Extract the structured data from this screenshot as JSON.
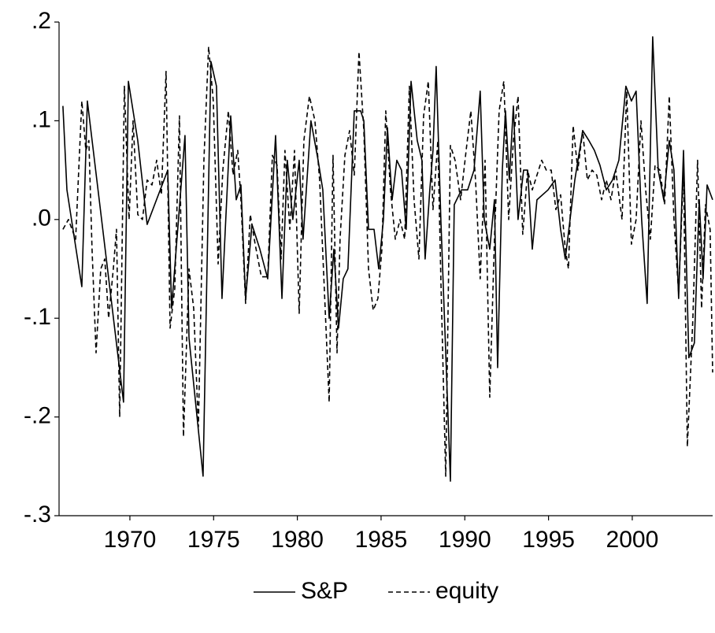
{
  "chart_data": {
    "type": "line",
    "xlim": [
      1965.77,
      2004.8
    ],
    "xticks": [
      1970,
      1975,
      1980,
      1985,
      1990,
      1995,
      2000
    ],
    "ylim": [
      -0.3,
      0.2
    ],
    "yticks": [
      {
        "value": 0.2,
        "label": ".2"
      },
      {
        "value": 0.1,
        "label": ".1"
      },
      {
        "value": 0,
        "label": ".0"
      },
      {
        "value": -0.1,
        "label": "-.1"
      },
      {
        "value": -0.2,
        "label": "-.2"
      },
      {
        "value": -0.3,
        "label": "-.3"
      }
    ],
    "grid": false,
    "legend": "bottom",
    "series": [
      {
        "name": "S&P",
        "color": "#000000",
        "line_style": "solid",
        "x": [
          1966.0,
          1966.24,
          1967.13,
          1967.46,
          1969.62,
          1969.91,
          1970.47,
          1971.03,
          1972.26,
          1972.49,
          1973.29,
          1973.53,
          1974.37,
          1974.84,
          1975.17,
          1975.5,
          1976.02,
          1976.35,
          1976.63,
          1976.91,
          1977.29,
          1977.76,
          1978.23,
          1978.7,
          1979.08,
          1979.4,
          1979.73,
          1980.11,
          1980.34,
          1980.81,
          1981.24,
          1981.52,
          1981.9,
          1982.18,
          1982.46,
          1982.74,
          1983.02,
          1983.4,
          1983.78,
          1983.97,
          1984.25,
          1984.58,
          1984.86,
          1985.14,
          1985.38,
          1985.66,
          1985.94,
          1986.22,
          1986.5,
          1986.79,
          1987.16,
          1987.44,
          1987.63,
          1987.91,
          1988.1,
          1988.29,
          1988.57,
          1989.14,
          1989.37,
          1989.8,
          1990.17,
          1990.55,
          1990.92,
          1991.16,
          1991.49,
          1991.77,
          1991.96,
          1992.24,
          1992.43,
          1992.66,
          1992.9,
          1993.18,
          1993.51,
          1993.75,
          1994.03,
          1994.31,
          1994.97,
          1995.39,
          1995.72,
          1996.0,
          1996.57,
          1997.04,
          1997.41,
          1997.74,
          1998.07,
          1998.45,
          1998.82,
          1999.2,
          1999.62,
          1999.95,
          2000.23,
          2000.56,
          2000.89,
          2001.22,
          2001.55,
          2001.88,
          2002.21,
          2002.49,
          2002.77,
          2003.06,
          2003.38,
          2003.71,
          2004.0,
          2004.23,
          2004.47,
          2004.8
        ],
        "values": [
          0.115,
          0.03,
          -0.068,
          0.12,
          -0.185,
          0.14,
          0.08,
          -0.005,
          0.05,
          -0.09,
          0.085,
          -0.12,
          -0.26,
          0.16,
          0.135,
          -0.08,
          0.105,
          0.02,
          0.035,
          -0.08,
          -0.005,
          -0.03,
          -0.06,
          0.085,
          -0.08,
          0.06,
          0.0,
          0.06,
          -0.02,
          0.1,
          0.06,
          0.03,
          -0.1,
          -0.03,
          -0.11,
          -0.06,
          -0.05,
          0.11,
          0.11,
          0.1,
          -0.01,
          -0.01,
          -0.05,
          0.0,
          0.093,
          0.02,
          0.06,
          0.05,
          -0.01,
          0.14,
          0.08,
          0.06,
          -0.04,
          0.03,
          0.07,
          0.155,
          0.0,
          -0.265,
          0.015,
          0.03,
          0.03,
          0.05,
          0.13,
          0.0,
          -0.03,
          0.02,
          -0.15,
          0.05,
          0.11,
          0.04,
          0.115,
          0.0,
          0.05,
          0.05,
          -0.03,
          0.02,
          0.03,
          0.04,
          -0.01,
          -0.04,
          0.04,
          0.09,
          0.08,
          0.07,
          0.055,
          0.03,
          0.04,
          0.06,
          0.135,
          0.12,
          0.13,
          0.0,
          -0.085,
          0.185,
          0.05,
          0.02,
          0.08,
          0.05,
          -0.08,
          0.07,
          -0.14,
          -0.125,
          0.02,
          -0.06,
          0.035,
          0.02
        ]
      },
      {
        "name": "equity",
        "color": "#000000",
        "line_style": "dashed",
        "x": [
          1966.0,
          1966.33,
          1966.76,
          1967.13,
          1967.37,
          1967.55,
          1967.74,
          1967.98,
          1968.26,
          1968.5,
          1968.73,
          1969.01,
          1969.2,
          1969.39,
          1969.67,
          1969.95,
          1970.19,
          1970.47,
          1970.75,
          1971.03,
          1971.32,
          1971.6,
          1971.88,
          1972.16,
          1972.4,
          1972.68,
          1972.96,
          1973.2,
          1973.53,
          1973.81,
          1974.09,
          1974.42,
          1974.7,
          1974.98,
          1975.27,
          1975.55,
          1975.88,
          1976.16,
          1976.44,
          1976.63,
          1976.91,
          1977.19,
          1977.48,
          1977.85,
          1978.23,
          1978.51,
          1978.79,
          1979.03,
          1979.26,
          1979.55,
          1979.83,
          1980.11,
          1980.39,
          1980.72,
          1981.05,
          1981.33,
          1981.61,
          1981.9,
          1982.13,
          1982.37,
          1982.55,
          1982.84,
          1983.12,
          1983.4,
          1983.68,
          1983.97,
          1984.25,
          1984.53,
          1984.81,
          1985.05,
          1985.28,
          1985.56,
          1985.85,
          1986.13,
          1986.41,
          1986.69,
          1986.97,
          1987.26,
          1987.54,
          1987.82,
          1988.1,
          1988.39,
          1988.57,
          1988.86,
          1989.14,
          1989.42,
          1989.75,
          1990.08,
          1990.36,
          1990.64,
          1990.92,
          1991.21,
          1991.49,
          1991.77,
          1992.05,
          1992.33,
          1992.62,
          1992.9,
          1993.18,
          1993.46,
          1993.75,
          1994.03,
          1994.31,
          1994.59,
          1994.87,
          1995.16,
          1995.44,
          1995.72,
          1996.0,
          1996.19,
          1996.47,
          1996.75,
          1997.04,
          1997.32,
          1997.6,
          1997.88,
          1998.17,
          1998.45,
          1998.73,
          1999.01,
          1999.39,
          1999.67,
          1999.95,
          2000.23,
          2000.52,
          2000.8,
          2001.08,
          2001.36,
          2001.65,
          2001.93,
          2002.21,
          2002.49,
          2002.77,
          2003.06,
          2003.29,
          2003.62,
          2003.9,
          2004.14,
          2004.37,
          2004.65,
          2004.8
        ],
        "values": [
          -0.01,
          0.0,
          -0.02,
          0.12,
          0.07,
          0.08,
          -0.03,
          -0.135,
          -0.05,
          -0.04,
          -0.1,
          -0.05,
          -0.01,
          -0.2,
          0.135,
          0.0,
          0.1,
          0.005,
          0.0,
          0.04,
          0.035,
          0.06,
          0.025,
          0.15,
          -0.11,
          -0.07,
          0.105,
          -0.22,
          -0.05,
          -0.09,
          -0.21,
          0.06,
          0.175,
          0.12,
          -0.045,
          0.05,
          0.11,
          0.045,
          0.07,
          0.02,
          -0.085,
          0.005,
          -0.025,
          -0.058,
          -0.058,
          0.065,
          0.055,
          -0.04,
          0.07,
          -0.01,
          0.07,
          -0.095,
          0.08,
          0.125,
          0.1,
          0.04,
          -0.07,
          -0.185,
          0.065,
          -0.135,
          -0.02,
          0.065,
          0.09,
          0.045,
          0.17,
          0.09,
          -0.05,
          -0.092,
          -0.08,
          -0.03,
          0.11,
          0.03,
          -0.02,
          0.0,
          -0.02,
          0.135,
          0.02,
          -0.04,
          0.105,
          0.14,
          0.01,
          0.08,
          -0.06,
          -0.26,
          0.075,
          0.06,
          0.02,
          0.07,
          0.11,
          0.04,
          -0.06,
          0.06,
          -0.18,
          -0.02,
          0.11,
          0.14,
          0.0,
          0.08,
          0.125,
          -0.015,
          0.05,
          0.03,
          0.045,
          0.06,
          0.05,
          0.05,
          0.01,
          0.025,
          -0.03,
          -0.05,
          0.095,
          0.05,
          0.09,
          0.04,
          0.05,
          0.045,
          0.02,
          0.04,
          0.02,
          0.05,
          0.0,
          0.13,
          -0.025,
          0.0,
          0.1,
          0.03,
          -0.02,
          0.055,
          0.05,
          0.015,
          0.125,
          0.0,
          -0.075,
          0.05,
          -0.23,
          -0.1,
          0.06,
          -0.09,
          0.015,
          -0.01,
          -0.155
        ]
      }
    ]
  }
}
